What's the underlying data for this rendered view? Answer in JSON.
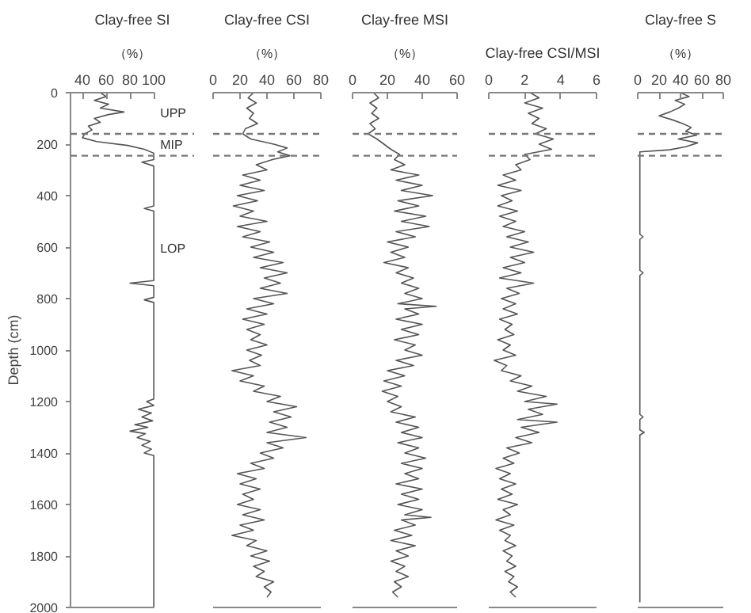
{
  "chart_data": [
    {
      "type": "line",
      "title": "Clay-free SI",
      "subtitle": "（%）",
      "ylabel": "Depth (cm)",
      "xlim": [
        30,
        100
      ],
      "xticks": [
        40,
        60,
        80,
        100
      ],
      "ylim": [
        2000,
        0
      ],
      "yticks": [
        0,
        200,
        400,
        600,
        800,
        1000,
        1200,
        1400,
        1600,
        1800,
        2000
      ],
      "grid": false,
      "annotations": [
        "UPP",
        "MIP",
        "LOP"
      ],
      "ref_lines": [
        {
          "axis": "y",
          "value": 160,
          "color": "#777777",
          "line_style": "dashed"
        },
        {
          "axis": "y",
          "value": 245,
          "color": "#777777",
          "line_style": "dashed"
        }
      ],
      "series": [
        {
          "color": "#555555",
          "x": [
            55,
            60,
            50,
            62,
            55,
            75,
            62,
            50,
            55,
            45,
            48,
            42,
            40,
            52,
            78,
            92,
            100,
            100,
            90,
            100,
            100,
            92,
            100,
            100,
            80,
            100,
            100,
            92,
            100,
            100,
            94,
            100,
            87,
            98,
            90,
            99,
            84,
            95,
            80,
            93,
            86,
            97,
            90,
            98,
            92,
            100,
            100
          ],
          "values": [
            0,
            15,
            30,
            45,
            60,
            75,
            85,
            100,
            115,
            130,
            145,
            160,
            175,
            190,
            205,
            220,
            235,
            260,
            270,
            285,
            440,
            450,
            460,
            730,
            740,
            750,
            795,
            805,
            815,
            1190,
            1200,
            1215,
            1230,
            1245,
            1260,
            1275,
            1290,
            1300,
            1315,
            1325,
            1340,
            1355,
            1370,
            1385,
            1400,
            1410,
            2000
          ]
        }
      ]
    },
    {
      "type": "line",
      "title": "Clay-free CSI",
      "subtitle": "（%）",
      "xlim": [
        0,
        80
      ],
      "xticks": [
        0,
        20,
        40,
        60,
        80
      ],
      "ylim": [
        2000,
        0
      ],
      "yticks": [
        0,
        200,
        400,
        600,
        800,
        1000,
        1200,
        1400,
        1600,
        1800,
        2000
      ],
      "tick_labels": "x",
      "grid": false,
      "ref_lines": [
        {
          "axis": "y",
          "value": 160,
          "color": "#777777",
          "line_style": "dashed"
        },
        {
          "axis": "y",
          "value": 245,
          "color": "#777777",
          "line_style": "dashed"
        }
      ],
      "series": [
        {
          "color": "#555555",
          "x": [
            30,
            26,
            32,
            25,
            30,
            27,
            33,
            24,
            22,
            28,
            45,
            55,
            48,
            57,
            44,
            32,
            40,
            22,
            35,
            20,
            38,
            18,
            33,
            15,
            30,
            20,
            40,
            18,
            35,
            22,
            42,
            28,
            45,
            30,
            52,
            35,
            55,
            38,
            50,
            35,
            55,
            30,
            45,
            25,
            40,
            22,
            38,
            25,
            35,
            28,
            40,
            25,
            36,
            27,
            35,
            14,
            30,
            20,
            38,
            30,
            50,
            40,
            62,
            45,
            58,
            42,
            55,
            40,
            69,
            40,
            52,
            35,
            45,
            28,
            38,
            18,
            32,
            20,
            35,
            22,
            30,
            18,
            35,
            22,
            38,
            20,
            30,
            14,
            32,
            25,
            40,
            28,
            42,
            30,
            38,
            32,
            45,
            38,
            43,
            40
          ],
          "values": [
            0,
            20,
            40,
            60,
            80,
            100,
            120,
            140,
            160,
            180,
            200,
            215,
            230,
            245,
            260,
            280,
            300,
            320,
            340,
            360,
            380,
            400,
            420,
            440,
            460,
            480,
            500,
            520,
            540,
            560,
            580,
            600,
            620,
            640,
            660,
            680,
            700,
            720,
            740,
            760,
            780,
            800,
            820,
            840,
            860,
            880,
            900,
            920,
            940,
            960,
            980,
            1000,
            1020,
            1040,
            1060,
            1080,
            1100,
            1120,
            1140,
            1160,
            1180,
            1200,
            1220,
            1240,
            1260,
            1280,
            1300,
            1320,
            1340,
            1360,
            1380,
            1400,
            1420,
            1440,
            1460,
            1480,
            1500,
            1520,
            1540,
            1560,
            1580,
            1600,
            1620,
            1640,
            1660,
            1680,
            1700,
            1720,
            1740,
            1760,
            1780,
            1800,
            1820,
            1840,
            1860,
            1880,
            1900,
            1920,
            1940,
            1960
          ]
        }
      ]
    },
    {
      "type": "line",
      "title": "Clay-free MSI",
      "subtitle": "（%）",
      "xlim": [
        0,
        60
      ],
      "xticks": [
        0,
        20,
        40,
        60
      ],
      "ylim": [
        2000,
        0
      ],
      "yticks": [
        0,
        200,
        400,
        600,
        800,
        1000,
        1200,
        1400,
        1600,
        1800,
        2000
      ],
      "tick_labels": "x",
      "grid": false,
      "ref_lines": [
        {
          "axis": "y",
          "value": 160,
          "color": "#777777",
          "line_style": "dashed"
        },
        {
          "axis": "y",
          "value": 245,
          "color": "#777777",
          "line_style": "dashed"
        }
      ],
      "series": [
        {
          "color": "#555555",
          "x": [
            12,
            15,
            10,
            14,
            11,
            15,
            10,
            13,
            9,
            14,
            18,
            22,
            27,
            24,
            30,
            22,
            38,
            25,
            40,
            28,
            46,
            26,
            38,
            24,
            42,
            28,
            44,
            25,
            36,
            20,
            32,
            22,
            30,
            18,
            32,
            25,
            35,
            28,
            38,
            30,
            40,
            26,
            48,
            30,
            38,
            25,
            40,
            28,
            38,
            24,
            36,
            30,
            40,
            25,
            35,
            20,
            30,
            18,
            28,
            17,
            26,
            20,
            28,
            22,
            36,
            25,
            38,
            28,
            40,
            26,
            38,
            30,
            42,
            28,
            40,
            30,
            38,
            25,
            40,
            28,
            38,
            26,
            40,
            30,
            45,
            28,
            36,
            24,
            34,
            22,
            36,
            25,
            32,
            22,
            30,
            25,
            32,
            24,
            28,
            23,
            26
          ],
          "values": [
            0,
            20,
            40,
            60,
            80,
            100,
            120,
            140,
            160,
            180,
            200,
            220,
            240,
            260,
            280,
            300,
            320,
            340,
            360,
            380,
            400,
            420,
            440,
            460,
            480,
            500,
            520,
            540,
            560,
            580,
            600,
            620,
            640,
            660,
            680,
            700,
            720,
            740,
            760,
            780,
            800,
            820,
            830,
            840,
            860,
            880,
            900,
            920,
            940,
            960,
            980,
            1000,
            1020,
            1040,
            1060,
            1080,
            1100,
            1120,
            1140,
            1160,
            1180,
            1200,
            1220,
            1240,
            1260,
            1280,
            1300,
            1320,
            1340,
            1360,
            1380,
            1400,
            1420,
            1440,
            1460,
            1480,
            1500,
            1520,
            1540,
            1560,
            1580,
            1600,
            1620,
            1640,
            1650,
            1660,
            1680,
            1700,
            1720,
            1740,
            1760,
            1780,
            1800,
            1820,
            1840,
            1860,
            1880,
            1900,
            1920,
            1940,
            1960
          ]
        }
      ]
    },
    {
      "type": "line",
      "title": "Clay-free CSI/MSI",
      "xlim": [
        0,
        6
      ],
      "xticks": [
        0,
        2,
        4,
        6
      ],
      "ylim": [
        2000,
        0
      ],
      "yticks": [
        0,
        200,
        400,
        600,
        800,
        1000,
        1200,
        1400,
        1600,
        1800,
        2000
      ],
      "tick_labels": "x",
      "grid": false,
      "ref_lines": [
        {
          "axis": "y",
          "value": 160,
          "color": "#777777",
          "line_style": "dashed"
        },
        {
          "axis": "y",
          "value": 245,
          "color": "#777777",
          "line_style": "dashed"
        }
      ],
      "series": [
        {
          "color": "#555555",
          "x": [
            2.3,
            2.8,
            2.0,
            3.0,
            2.2,
            2.8,
            2.4,
            3.2,
            2.6,
            3.6,
            2.8,
            3.5,
            2.0,
            2.3,
            1.5,
            1.8,
            0.8,
            1.5,
            0.5,
            1.8,
            0.7,
            1.3,
            0.5,
            1.6,
            0.6,
            1.5,
            0.8,
            2.0,
            1.0,
            2.2,
            1.2,
            2.5,
            1.2,
            2.0,
            0.8,
            1.8,
            0.6,
            2.5,
            1.0,
            1.7,
            0.7,
            1.5,
            0.8,
            1.6,
            0.6,
            1.3,
            0.9,
            1.4,
            0.5,
            1.2,
            0.8,
            1.5,
            0.3,
            1.0,
            0.7,
            1.8,
            1.2,
            2.4,
            1.6,
            3.2,
            2.0,
            3.8,
            2.2,
            3.0,
            1.6,
            3.8,
            1.8,
            2.8,
            1.5,
            2.4,
            1.0,
            1.7,
            0.8,
            1.4,
            0.4,
            1.2,
            0.6,
            1.5,
            0.7,
            1.3,
            0.5,
            1.6,
            0.8,
            1.2,
            0.4,
            1.4,
            0.6,
            1.2,
            0.9,
            1.5,
            0.8,
            1.3,
            1.0,
            1.5,
            0.9,
            1.4,
            1.1,
            1.6,
            1.2,
            1.5
          ],
          "values": [
            0,
            20,
            40,
            60,
            80,
            100,
            120,
            140,
            160,
            180,
            200,
            220,
            240,
            260,
            280,
            300,
            320,
            340,
            360,
            380,
            400,
            420,
            440,
            460,
            480,
            500,
            520,
            540,
            560,
            580,
            600,
            620,
            640,
            660,
            680,
            700,
            720,
            740,
            760,
            780,
            800,
            820,
            840,
            860,
            880,
            900,
            920,
            940,
            960,
            980,
            1000,
            1020,
            1040,
            1060,
            1080,
            1100,
            1120,
            1140,
            1160,
            1180,
            1200,
            1210,
            1230,
            1250,
            1270,
            1280,
            1300,
            1320,
            1340,
            1360,
            1380,
            1400,
            1420,
            1440,
            1460,
            1480,
            1500,
            1520,
            1540,
            1560,
            1580,
            1600,
            1620,
            1640,
            1660,
            1680,
            1700,
            1720,
            1740,
            1760,
            1780,
            1800,
            1820,
            1840,
            1860,
            1880,
            1900,
            1920,
            1940,
            1960
          ]
        }
      ]
    },
    {
      "type": "line",
      "title": "Clay-free S",
      "subtitle": "（%）",
      "xlim": [
        0,
        80
      ],
      "xticks": [
        0,
        20,
        40,
        60,
        80
      ],
      "ylim": [
        2000,
        0
      ],
      "yticks": [
        0,
        200,
        400,
        600,
        800,
        1000,
        1200,
        1400,
        1600,
        1800,
        2000
      ],
      "tick_labels": "x",
      "grid": false,
      "ref_lines": [
        {
          "axis": "y",
          "value": 160,
          "color": "#777777",
          "line_style": "dashed"
        },
        {
          "axis": "y",
          "value": 245,
          "color": "#777777",
          "line_style": "dashed"
        }
      ],
      "series": [
        {
          "color": "#555555",
          "x": [
            40,
            48,
            35,
            44,
            38,
            30,
            20,
            32,
            42,
            50,
            45,
            55,
            38,
            56,
            45,
            30,
            2,
            2,
            5,
            2,
            2,
            5,
            2,
            2,
            5,
            2,
            2,
            6,
            2,
            2
          ],
          "values": [
            0,
            15,
            30,
            45,
            60,
            75,
            90,
            105,
            120,
            135,
            150,
            165,
            180,
            195,
            210,
            222,
            230,
            550,
            560,
            570,
            690,
            700,
            710,
            1250,
            1260,
            1270,
            1310,
            1320,
            1330,
            1980
          ]
        }
      ]
    }
  ]
}
